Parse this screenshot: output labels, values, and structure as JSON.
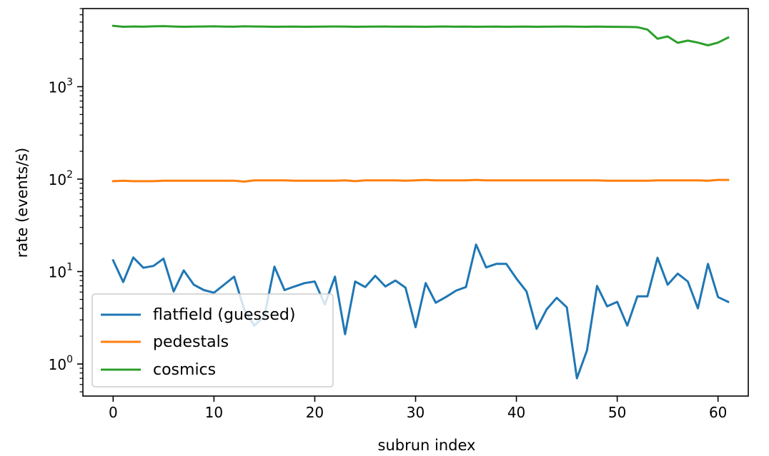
{
  "chart_data": {
    "type": "line",
    "xlabel": "subrun index",
    "ylabel": "rate (events/s)",
    "xlim": [
      -3,
      63
    ],
    "ylim": [
      0.45,
      7000
    ],
    "yscale": "log",
    "xticks": [
      0,
      10,
      20,
      30,
      40,
      50,
      60
    ],
    "ytick_major": [
      1,
      10,
      100,
      1000
    ],
    "ytick_labels": [
      {
        "base": "10",
        "exp": "0"
      },
      {
        "base": "10",
        "exp": "1"
      },
      {
        "base": "10",
        "exp": "2"
      },
      {
        "base": "10",
        "exp": "3"
      }
    ],
    "grid": false,
    "legend_position": "bottom-left",
    "x": [
      0,
      1,
      2,
      3,
      4,
      5,
      6,
      7,
      8,
      9,
      10,
      11,
      12,
      13,
      14,
      15,
      16,
      17,
      18,
      19,
      20,
      21,
      22,
      23,
      24,
      25,
      26,
      27,
      28,
      29,
      30,
      31,
      32,
      33,
      34,
      35,
      36,
      37,
      38,
      39,
      40,
      41,
      42,
      43,
      44,
      45,
      46,
      47,
      48,
      49,
      50,
      51,
      52,
      53,
      54,
      55,
      56,
      57,
      58,
      59,
      60,
      61
    ],
    "series": [
      {
        "name": "flatfield (guessed)",
        "color": "#1f77b4",
        "values": [
          13.2,
          7.7,
          14.2,
          11.0,
          11.5,
          13.8,
          6.1,
          10.3,
          7.2,
          6.3,
          5.9,
          7.2,
          8.8,
          3.9,
          2.6,
          3.3,
          11.3,
          6.3,
          6.9,
          7.5,
          7.8,
          4.4,
          8.8,
          2.1,
          7.8,
          6.8,
          9.0,
          6.9,
          8.0,
          6.7,
          2.5,
          7.5,
          4.6,
          5.3,
          6.2,
          6.8,
          19.6,
          11.1,
          12.1,
          12.1,
          8.4,
          6.1,
          2.4,
          3.9,
          5.2,
          4.1,
          0.7,
          1.4,
          7.0,
          4.2,
          4.7,
          2.6,
          5.4,
          5.4,
          14.1,
          7.2,
          9.5,
          7.8,
          4.0,
          12.1,
          5.3,
          4.7
        ]
      },
      {
        "name": "pedestals",
        "color": "#ff7f0e",
        "values": [
          95,
          96,
          95,
          95,
          95,
          96,
          96,
          96,
          96,
          96,
          96,
          96,
          96,
          94,
          97,
          97,
          97,
          97,
          96,
          96,
          96,
          96,
          96,
          97,
          95,
          97,
          97,
          97,
          97,
          96,
          97,
          98,
          97,
          97,
          97,
          97,
          98,
          97,
          97,
          97,
          97,
          97,
          97,
          97,
          97,
          97,
          97,
          97,
          97,
          96,
          96,
          96,
          96,
          96,
          97,
          97,
          97,
          97,
          97,
          96,
          98,
          98
        ]
      },
      {
        "name": "cosmics",
        "color": "#2ca02c",
        "values": [
          4550,
          4450,
          4480,
          4460,
          4500,
          4520,
          4480,
          4450,
          4470,
          4480,
          4500,
          4470,
          4460,
          4500,
          4480,
          4470,
          4450,
          4460,
          4470,
          4450,
          4460,
          4470,
          4480,
          4470,
          4450,
          4460,
          4470,
          4480,
          4460,
          4470,
          4460,
          4450,
          4470,
          4480,
          4460,
          4470,
          4450,
          4460,
          4470,
          4450,
          4460,
          4470,
          4450,
          4460,
          4470,
          4480,
          4460,
          4450,
          4470,
          4450,
          4440,
          4430,
          4400,
          4150,
          3300,
          3500,
          2980,
          3150,
          3000,
          2800,
          3000,
          3400
        ]
      }
    ]
  }
}
